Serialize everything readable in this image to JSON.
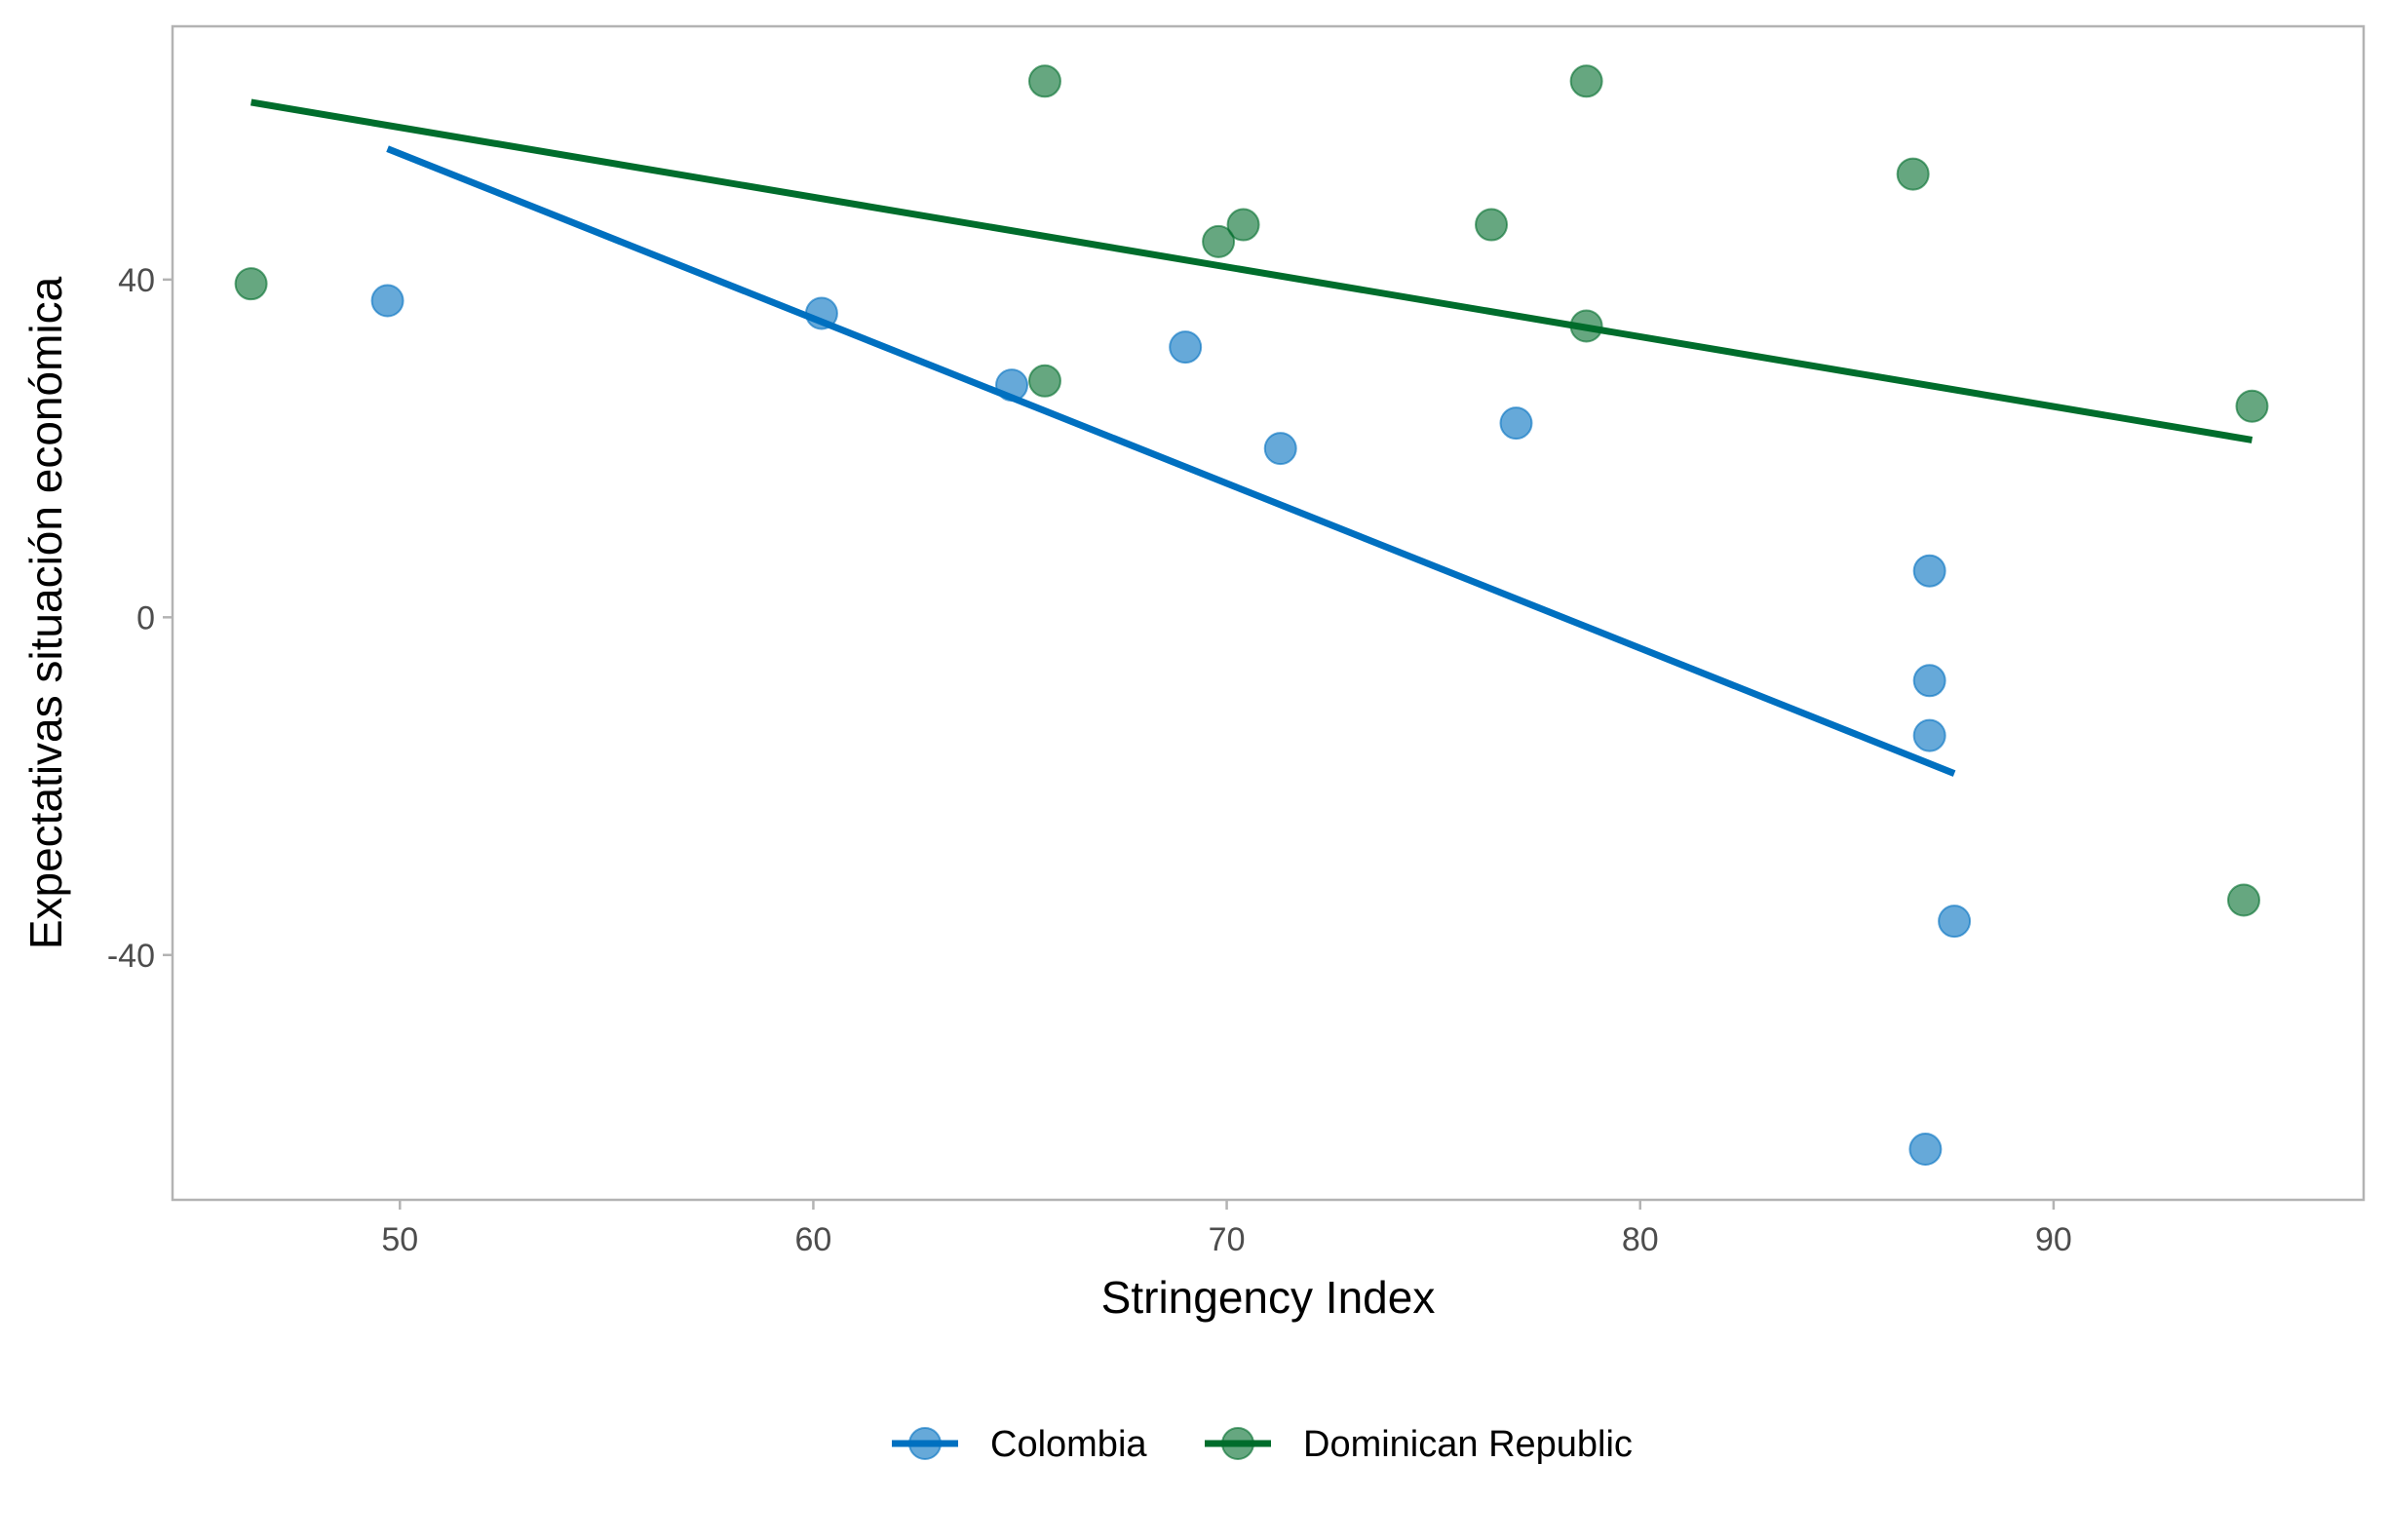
{
  "chart_data": {
    "type": "scatter",
    "title": "",
    "xlabel": "Stringency Index",
    "ylabel": "Expectativas situación económica",
    "xlim": [
      44.5,
      97.5
    ],
    "ylim": [
      -69,
      70
    ],
    "x_ticks": [
      50,
      60,
      70,
      80,
      90
    ],
    "y_ticks": [
      -40,
      0,
      40
    ],
    "grid": false,
    "legend_position": "bottom",
    "series": [
      {
        "name": "Colombia",
        "color": "#0070c0",
        "points": [
          {
            "x": 49.7,
            "y": 37.5
          },
          {
            "x": 60.2,
            "y": 36
          },
          {
            "x": 64.8,
            "y": 27.5
          },
          {
            "x": 69.0,
            "y": 32
          },
          {
            "x": 71.3,
            "y": 20
          },
          {
            "x": 77.0,
            "y": 23
          },
          {
            "x": 87.0,
            "y": 5.5
          },
          {
            "x": 87.0,
            "y": -7.5
          },
          {
            "x": 87.0,
            "y": -14
          },
          {
            "x": 87.6,
            "y": -36
          },
          {
            "x": 86.9,
            "y": -63
          }
        ],
        "trend": {
          "x": [
            49.7,
            87.6
          ],
          "y": [
            55.5,
            -18.5
          ]
        }
      },
      {
        "name": "Dominican Republic",
        "color": "#006d2c",
        "points": [
          {
            "x": 46.4,
            "y": 39.5
          },
          {
            "x": 65.6,
            "y": 63.5
          },
          {
            "x": 65.6,
            "y": 28
          },
          {
            "x": 69.8,
            "y": 44.5
          },
          {
            "x": 70.4,
            "y": 46.5
          },
          {
            "x": 76.4,
            "y": 46.5
          },
          {
            "x": 78.7,
            "y": 63.5
          },
          {
            "x": 78.7,
            "y": 34.5
          },
          {
            "x": 86.6,
            "y": 52.5
          },
          {
            "x": 94.8,
            "y": 25
          },
          {
            "x": 94.6,
            "y": -33.5
          }
        ],
        "trend": {
          "x": [
            46.4,
            94.8
          ],
          "y": [
            61,
            21
          ]
        }
      }
    ]
  }
}
